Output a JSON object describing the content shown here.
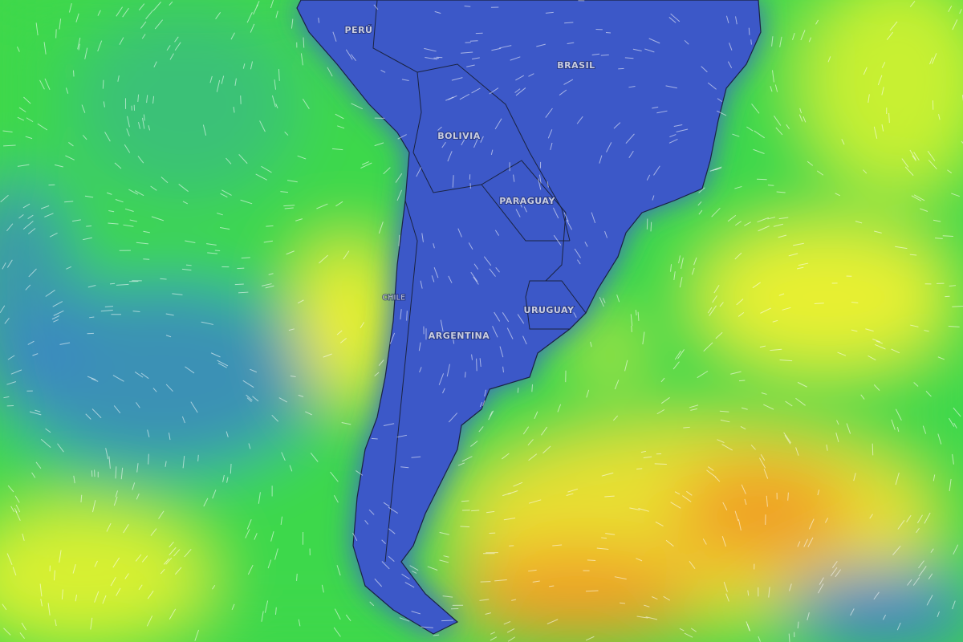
{
  "map": {
    "labels": [
      "PERÚ",
      "BRASIL",
      "BOLIVIA",
      "PARAGUAY",
      "CHILE",
      "ARGENTINA",
      "URUGUAY"
    ]
  }
}
